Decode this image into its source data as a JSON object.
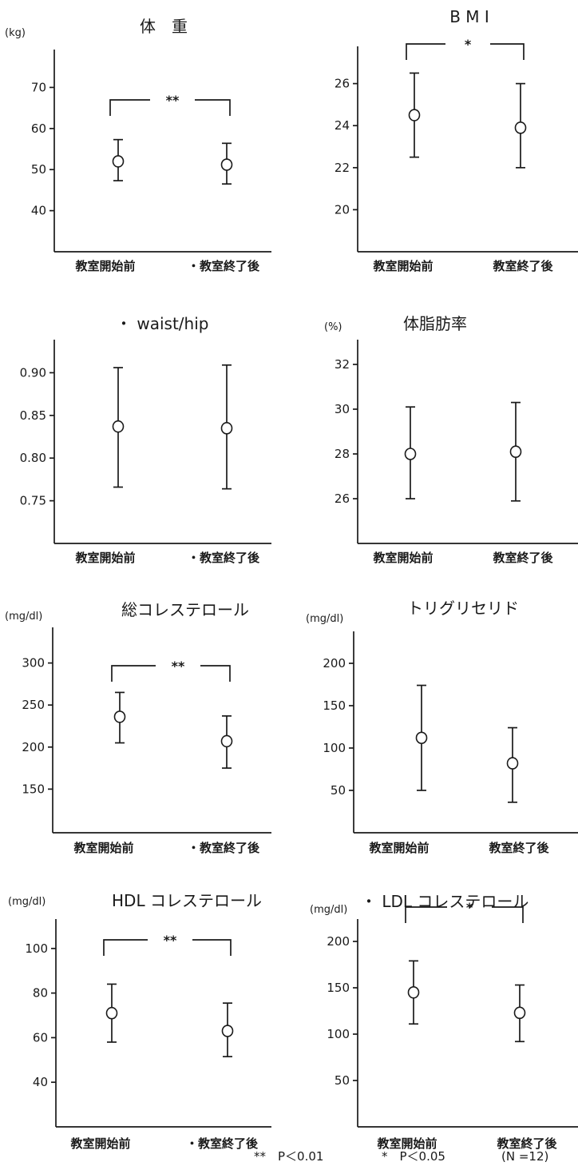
{
  "chart_data": [
    {
      "type": "scatter",
      "title": "体　重",
      "ylabel": "(kg)",
      "ylim": [
        30,
        80
      ],
      "yticks": [
        "70",
        "60",
        "50",
        "40"
      ],
      "categories": [
        "教室開始前",
        "・教室終了後"
      ],
      "values": [
        52,
        51.2
      ],
      "error_low": [
        47.3,
        46.5
      ],
      "error_high": [
        57.3,
        56.4
      ],
      "significance": "**"
    },
    {
      "type": "scatter",
      "title": "B M I",
      "ylabel": "",
      "ylim": [
        18,
        28
      ],
      "yticks": [
        "26",
        "24",
        "22",
        "20"
      ],
      "categories": [
        "教室開始前",
        "教室終了後"
      ],
      "values": [
        24.5,
        23.9
      ],
      "error_low": [
        22.5,
        22.0
      ],
      "error_high": [
        26.5,
        26.0
      ],
      "significance": "*"
    },
    {
      "type": "scatter",
      "title": "・ waist/hip",
      "ylabel": "",
      "ylim": [
        0.7,
        0.95
      ],
      "yticks": [
        "0.90",
        "0.85",
        "0.80",
        "0.75"
      ],
      "categories": [
        "教室開始前",
        "・教室終了後"
      ],
      "values": [
        0.837,
        0.835
      ],
      "error_low": [
        0.766,
        0.764
      ],
      "error_high": [
        0.906,
        0.909
      ],
      "significance": ""
    },
    {
      "type": "scatter",
      "title": "体脂肪率",
      "ylabel": "(%)",
      "ylim": [
        24,
        34
      ],
      "yticks": [
        "32",
        "30",
        "28",
        "26"
      ],
      "categories": [
        "教室開始前",
        "教室終了後"
      ],
      "values": [
        28.0,
        28.1
      ],
      "error_low": [
        26.0,
        25.9
      ],
      "error_high": [
        30.1,
        30.3
      ],
      "significance": ""
    },
    {
      "type": "scatter",
      "title": "総コレステロール",
      "ylabel": "(mg/dl)",
      "ylim": [
        100,
        350
      ],
      "yticks": [
        "300",
        "250",
        "200",
        "150"
      ],
      "categories": [
        "教室開始前",
        "・教室終了後"
      ],
      "values": [
        236,
        207
      ],
      "error_low": [
        205,
        175
      ],
      "error_high": [
        265,
        237
      ],
      "significance": "**"
    },
    {
      "type": "scatter",
      "title": "トリグリセリド",
      "ylabel": "(mg/dl)",
      "ylim": [
        0,
        250
      ],
      "yticks": [
        "200",
        "150",
        "100",
        "50"
      ],
      "categories": [
        "教室開始前",
        "教室終了後"
      ],
      "values": [
        112,
        82
      ],
      "error_low": [
        50,
        36
      ],
      "error_high": [
        174,
        124
      ],
      "significance": ""
    },
    {
      "type": "scatter",
      "title": "HDL コレステロール",
      "ylabel": "(mg/dl)",
      "ylim": [
        20,
        120
      ],
      "yticks": [
        "100",
        "80",
        "60",
        "40"
      ],
      "categories": [
        "教室開始前",
        "・教室終了後"
      ],
      "values": [
        71,
        63
      ],
      "error_low": [
        58,
        51.5
      ],
      "error_high": [
        84,
        75.5
      ],
      "significance": "**"
    },
    {
      "type": "scatter",
      "title": "・ LDL コレステロール",
      "ylabel": "(mg/dl)",
      "ylim": [
        0,
        250
      ],
      "yticks": [
        "200",
        "150",
        "100",
        "50"
      ],
      "categories": [
        "教室開始前",
        "教室終了後"
      ],
      "values": [
        145,
        123
      ],
      "error_low": [
        111,
        92
      ],
      "error_high": [
        179,
        153
      ],
      "significance": "*"
    }
  ],
  "footnote": {
    "p01": "**　P＜0.01",
    "p05": "*　P＜0.05",
    "n": "(N =12)"
  }
}
